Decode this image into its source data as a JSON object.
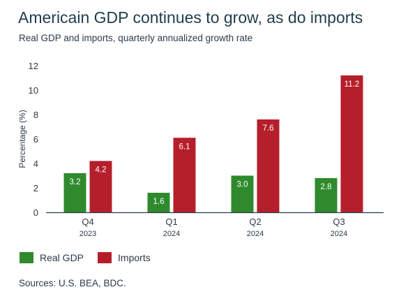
{
  "title": "Americain GDP continues to grow, as do imports",
  "subtitle": "Real GDP and imports, quarterly annualized growth rate",
  "source": "Sources: U.S. BEA, BDC.",
  "colors": {
    "real_gdp": "#2f8a2d",
    "imports": "#b51f2b",
    "axis": "#2b3a4a"
  },
  "chart_data": {
    "type": "bar",
    "categories": [
      {
        "quarter": "Q4",
        "year": "2023"
      },
      {
        "quarter": "Q1",
        "year": "2024"
      },
      {
        "quarter": "Q2",
        "year": "2024"
      },
      {
        "quarter": "Q3",
        "year": "2024"
      }
    ],
    "series": [
      {
        "name": "Real GDP",
        "values": [
          3.2,
          1.6,
          3.0,
          2.8
        ],
        "labels": [
          "3.2",
          "1.6",
          "3.0",
          "2.8"
        ],
        "color": "#2f8a2d"
      },
      {
        "name": "Imports",
        "values": [
          4.2,
          6.1,
          7.6,
          11.2
        ],
        "labels": [
          "4.2",
          "6.1",
          "7.6",
          "11.2"
        ],
        "color": "#b51f2b"
      }
    ],
    "ylabel": "Percentage (%)",
    "ylim": [
      0,
      12
    ],
    "yticks": [
      "0",
      "2",
      "4",
      "6",
      "8",
      "10",
      "12"
    ],
    "grid": false,
    "legend_position": "bottom-left"
  }
}
